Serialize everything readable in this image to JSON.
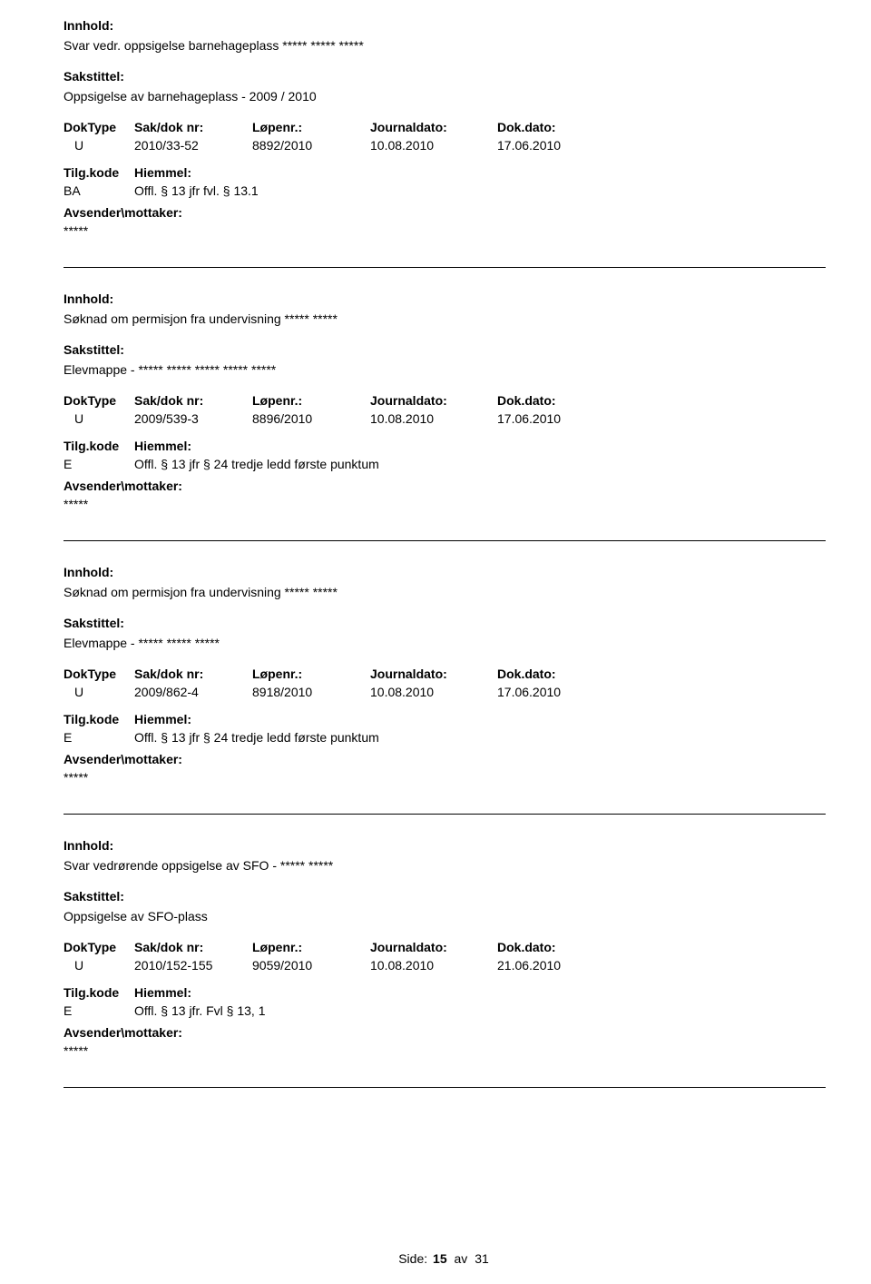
{
  "labels": {
    "innhold": "Innhold:",
    "sakstittel": "Sakstittel:",
    "doktype": "DokType",
    "sakdok": "Sak/dok nr:",
    "lopenr": "Løpenr.:",
    "journaldato": "Journaldato:",
    "dokdato": "Dok.dato:",
    "tilgkode": "Tilg.kode",
    "hiemmel": "Hiemmel:",
    "avsender": "Avsender\\mottaker:",
    "side": "Side:",
    "av": "av"
  },
  "entries": [
    {
      "innhold": "Svar vedr. oppsigelse barnehageplass ***** ***** *****",
      "sakstittel": "Oppsigelse av barnehageplass - 2009 / 2010",
      "doktype": "U",
      "sakdok": "2010/33-52",
      "lopenr": "8892/2010",
      "journaldato": "10.08.2010",
      "dokdato": "17.06.2010",
      "tilgkode": "BA",
      "hiemmel": "Offl. § 13 jfr fvl. § 13.1",
      "avsender": "*****"
    },
    {
      "innhold": "Søknad om permisjon fra undervisning ***** *****",
      "sakstittel": "Elevmappe - ***** ***** ***** ***** *****",
      "doktype": "U",
      "sakdok": "2009/539-3",
      "lopenr": "8896/2010",
      "journaldato": "10.08.2010",
      "dokdato": "17.06.2010",
      "tilgkode": "E",
      "hiemmel": "Offl. § 13 jfr § 24 tredje ledd første punktum",
      "avsender": "*****"
    },
    {
      "innhold": "Søknad om permisjon fra undervisning ***** *****",
      "sakstittel": "Elevmappe - ***** ***** *****",
      "doktype": "U",
      "sakdok": "2009/862-4",
      "lopenr": "8918/2010",
      "journaldato": "10.08.2010",
      "dokdato": "17.06.2010",
      "tilgkode": "E",
      "hiemmel": "Offl. § 13 jfr § 24 tredje ledd første punktum",
      "avsender": "*****"
    },
    {
      "innhold": "Svar vedrørende oppsigelse av SFO - ***** *****",
      "sakstittel": "Oppsigelse av SFO-plass",
      "doktype": "U",
      "sakdok": "2010/152-155",
      "lopenr": "9059/2010",
      "journaldato": "10.08.2010",
      "dokdato": "21.06.2010",
      "tilgkode": "E",
      "hiemmel": "Offl. § 13 jfr. Fvl § 13, 1",
      "avsender": "*****"
    }
  ],
  "footer": {
    "current": "15",
    "total": "31"
  }
}
